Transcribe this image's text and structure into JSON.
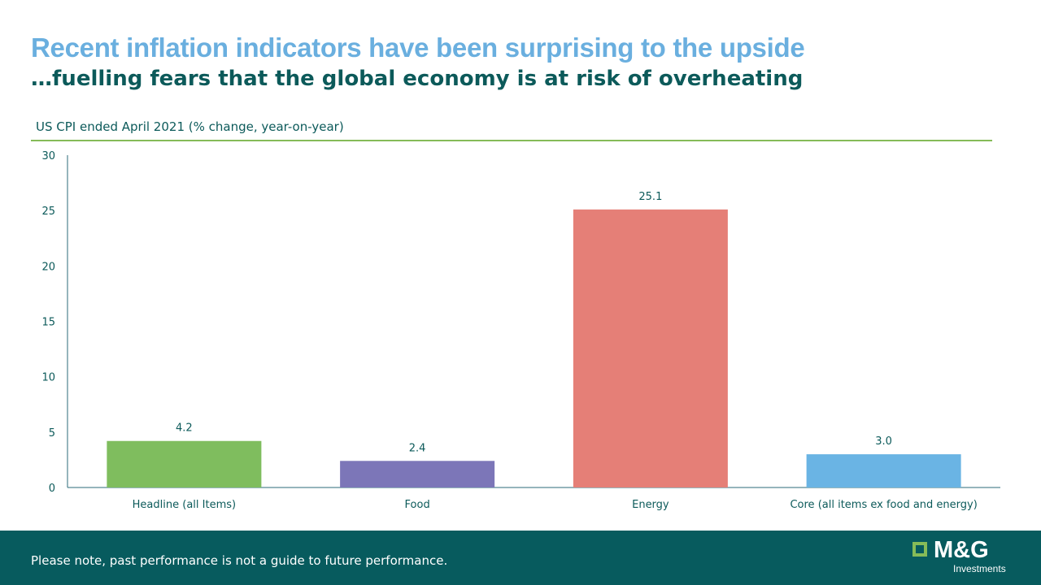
{
  "header": {
    "title": "Recent inflation indicators have been surprising to the upside",
    "subtitle": "…fuelling fears that the global economy is at risk of overheating",
    "chart_label": "US CPI ended April 2021 (% change, year-on-year)"
  },
  "chart_data": {
    "type": "bar",
    "title": "US CPI ended April 2021 (% change, year-on-year)",
    "categories": [
      "Headline (all Items)",
      "Food",
      "Energy",
      "Core (all items ex food and energy)"
    ],
    "values": [
      4.2,
      2.4,
      25.1,
      3.0
    ],
    "value_labels": [
      "4.2",
      "2.4",
      "25.1",
      "3.0"
    ],
    "colors": [
      "#7fbd5e",
      "#7c76b8",
      "#e57f77",
      "#6ab4e4"
    ],
    "ylim": [
      0,
      30
    ],
    "yticks": [
      0,
      5,
      10,
      15,
      20,
      25,
      30
    ],
    "grid": false,
    "legend": "none"
  },
  "footer": {
    "disclaimer": "Please note, past performance is not a guide to future performance.",
    "logo_brand": "M&G",
    "logo_sub": "Investments"
  },
  "colors": {
    "title": "#6aafdf",
    "text": "#0c5a5a",
    "rule": "#86bb58",
    "footer_bg": "#075b5e"
  }
}
